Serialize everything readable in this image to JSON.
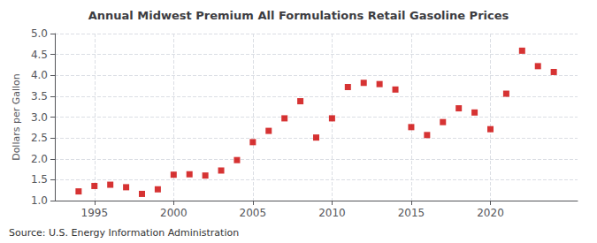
{
  "chart_data": {
    "type": "scatter",
    "title": "Annual Midwest Premium All Formulations Retail Gasoline Prices",
    "ylabel": "Dollars per Gallon",
    "annotation": "Source: U.S. Energy Information Administration",
    "x": [
      1994,
      1995,
      1996,
      1997,
      1998,
      1999,
      2000,
      2001,
      2002,
      2003,
      2004,
      2005,
      2006,
      2007,
      2008,
      2009,
      2010,
      2011,
      2012,
      2013,
      2014,
      2015,
      2016,
      2017,
      2018,
      2019,
      2020,
      2021,
      2022,
      2023,
      2024
    ],
    "values": [
      1.22,
      1.35,
      1.38,
      1.32,
      1.16,
      1.27,
      1.62,
      1.63,
      1.6,
      1.72,
      1.97,
      2.4,
      2.67,
      2.97,
      3.38,
      2.51,
      2.97,
      3.72,
      3.82,
      3.79,
      3.66,
      2.76,
      2.57,
      2.88,
      3.21,
      3.11,
      2.71,
      3.56,
      4.59,
      4.22,
      4.08
    ],
    "color": "#cc0000",
    "marker": "square",
    "xlim": [
      1992.5,
      2025.5
    ],
    "xticks": [
      1995,
      2000,
      2005,
      2010,
      2015,
      2020
    ],
    "ylim": [
      1.0,
      5.0
    ],
    "yticks": [
      {
        "value": 1.0,
        "label": "1.0"
      },
      1.5,
      {
        "value": 2.0,
        "label": "2.0"
      },
      2.5,
      {
        "value": 3.0,
        "label": "3.0"
      },
      3.5,
      {
        "value": 4.0,
        "label": "4.0"
      },
      4.5,
      {
        "value": 5.0,
        "label": "5.0"
      }
    ],
    "grid": true
  }
}
